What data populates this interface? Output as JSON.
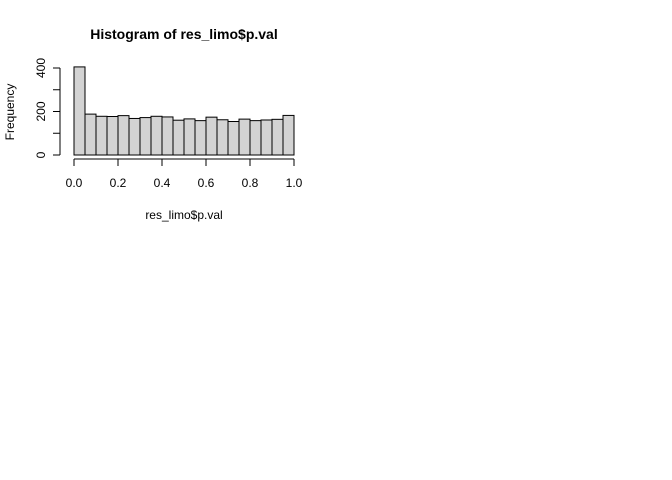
{
  "chart_data": {
    "type": "bar",
    "title": "Histogram of res_limo$p.val",
    "xlabel": "res_limo$p.val",
    "ylabel": "Frequency",
    "bin_width": 0.05,
    "bin_starts": [
      0.0,
      0.05,
      0.1,
      0.15,
      0.2,
      0.25,
      0.3,
      0.35,
      0.4,
      0.45,
      0.5,
      0.55,
      0.6,
      0.65,
      0.7,
      0.75,
      0.8,
      0.85,
      0.9,
      0.95
    ],
    "values": [
      405,
      188,
      178,
      177,
      181,
      168,
      172,
      178,
      175,
      160,
      166,
      158,
      174,
      162,
      154,
      165,
      158,
      161,
      164,
      182
    ],
    "xlim": [
      0,
      1
    ],
    "ylim": [
      0,
      405
    ],
    "x_ticks": [
      0.0,
      0.2,
      0.4,
      0.6,
      0.8,
      1.0
    ],
    "x_tick_labels": [
      "0.0",
      "0.2",
      "0.4",
      "0.6",
      "0.8",
      "1.0"
    ],
    "y_ticks": [
      0,
      100,
      200,
      300,
      400
    ],
    "y_tick_labels": [
      "0",
      "",
      "200",
      "",
      "400"
    ],
    "colors": {
      "fill": "#d3d3d3",
      "stroke": "#000000"
    },
    "grid": false,
    "legend": "none"
  }
}
